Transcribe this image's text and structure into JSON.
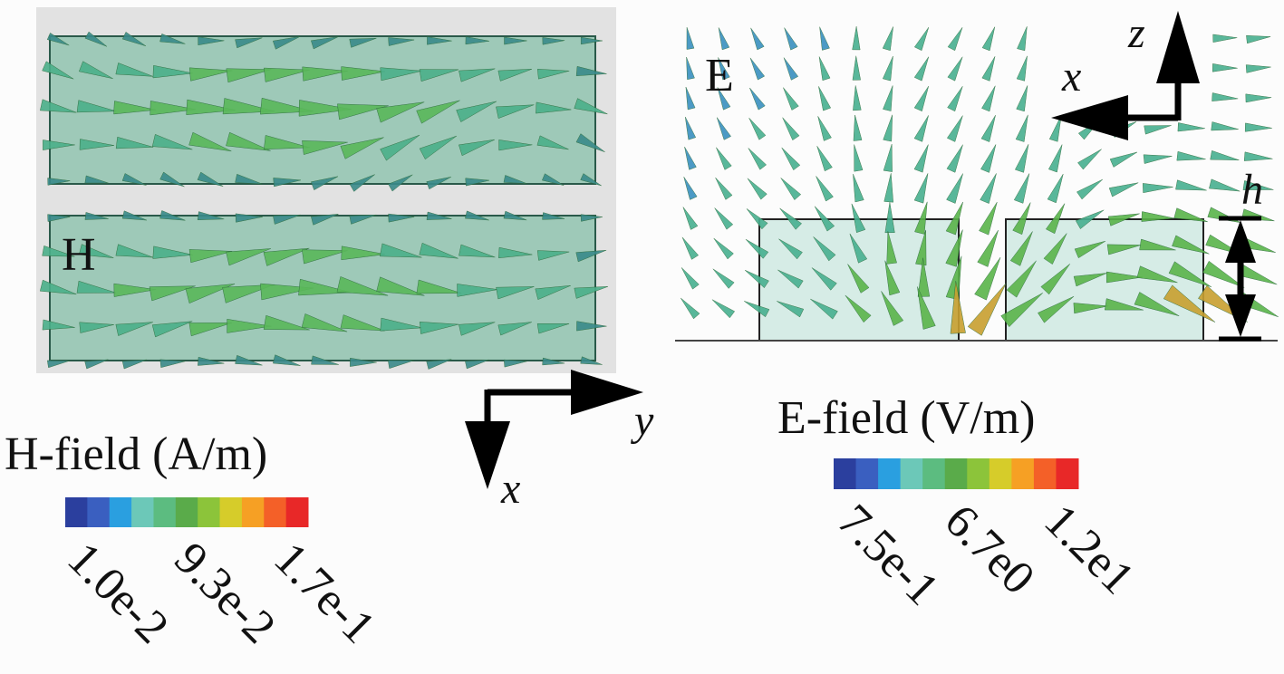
{
  "h_panel": {
    "label": "H",
    "axes": {
      "horizontal": "y",
      "vertical": "x"
    },
    "legend": {
      "title": "H-field (A/m)",
      "ticks": [
        "1.0e-2",
        "9.3e-2",
        "1.7e-1"
      ]
    }
  },
  "e_panel": {
    "label": "E",
    "axes": {
      "horizontal": "x",
      "vertical": "z"
    },
    "dimension": "h",
    "legend": {
      "title": "E-field (V/m)",
      "ticks": [
        "7.5e-1",
        "6.7e0",
        "1.2e1"
      ]
    }
  }
}
